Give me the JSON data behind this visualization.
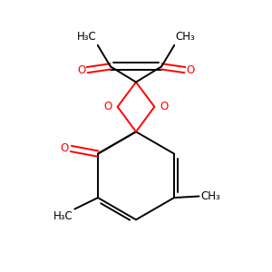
{
  "bg_color": "#ffffff",
  "bond_color": "#000000",
  "red_color": "#ff0000",
  "lw": 1.4,
  "figsize": [
    3.0,
    3.0
  ],
  "dpi": 100,
  "xlim": [
    0.1,
    0.9
  ],
  "ylim": [
    0.05,
    1.0
  ],
  "fs": 8.5
}
